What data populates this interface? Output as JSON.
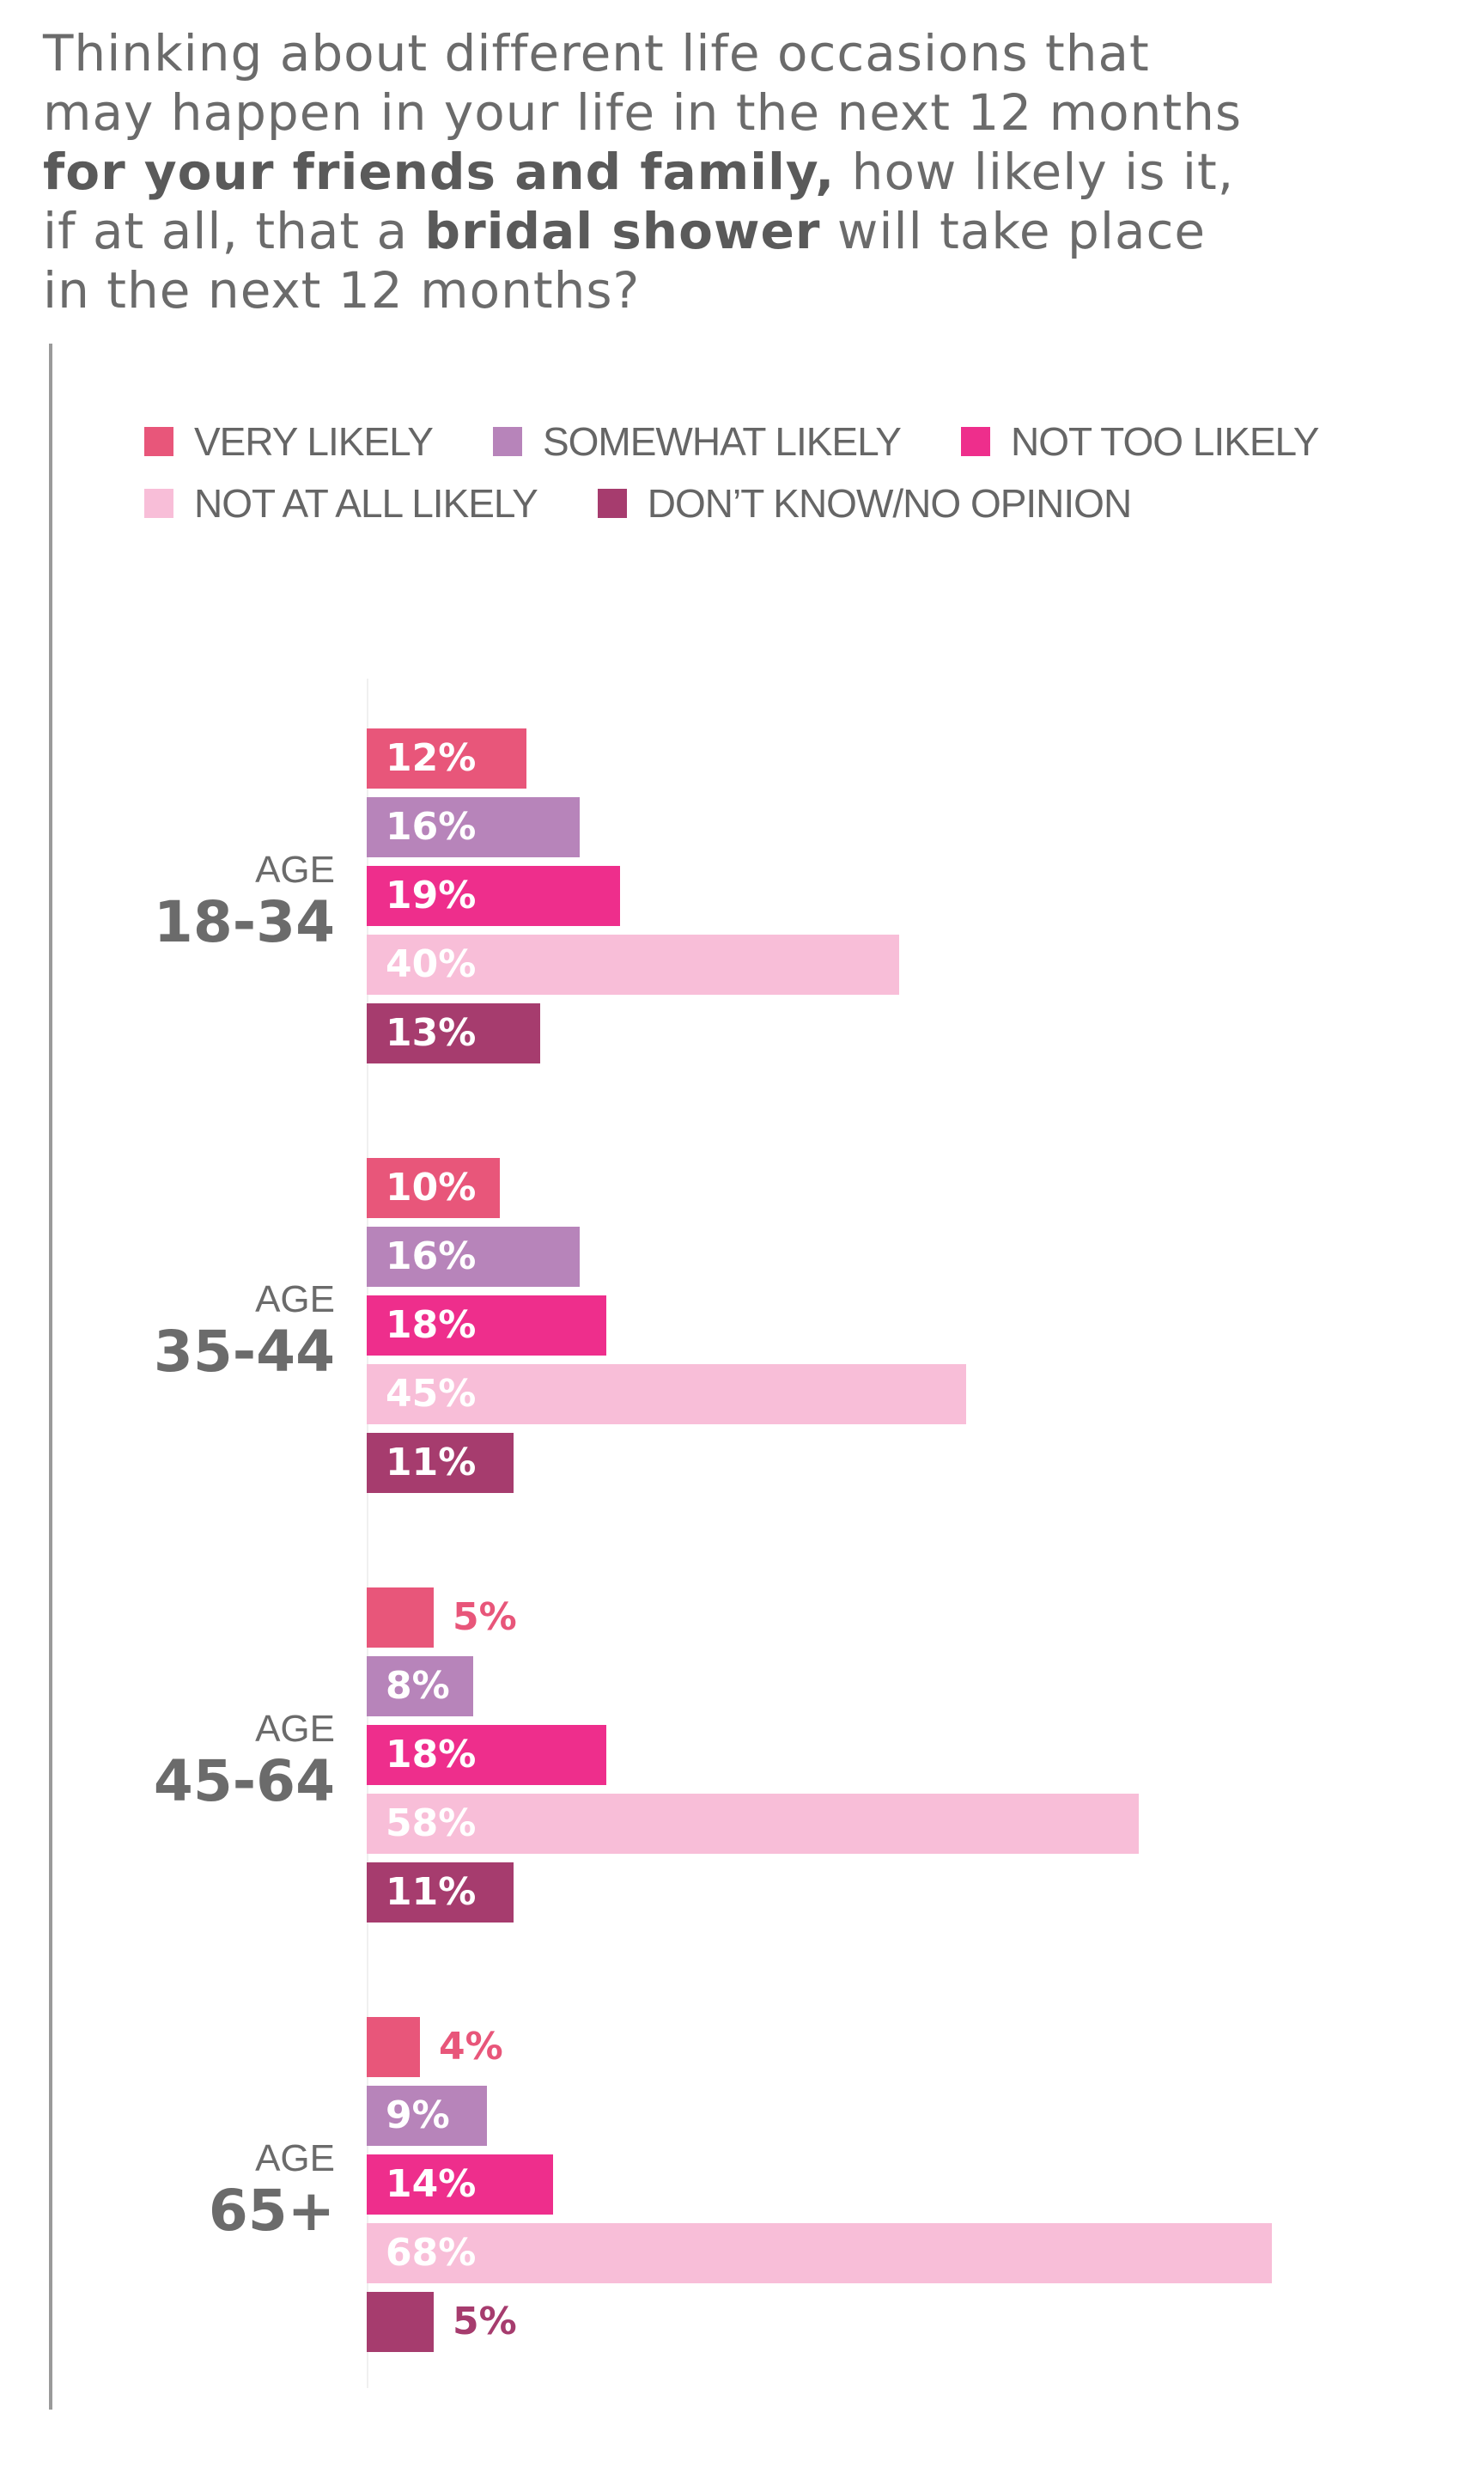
{
  "question": {
    "line1": "Thinking about different life occasions that",
    "line2": "may happen in your life in the next 12 months",
    "line3_bold": "for your friends and family,",
    "line3_rest": " how likely is it,",
    "line4_pre": "if at all, that a ",
    "line4_bold": "bridal shower",
    "line4_rest": " will take place",
    "line5": "in the next 12 months?"
  },
  "chart_data": {
    "type": "bar",
    "orientation": "horizontal",
    "title": "",
    "legend_position": "top",
    "series": [
      {
        "name": "VERY LIKELY",
        "color": "#e8567a",
        "values": [
          12,
          10,
          5,
          4
        ]
      },
      {
        "name": "SOMEWHAT LIKELY",
        "color": "#b784ba",
        "values": [
          16,
          16,
          8,
          9
        ]
      },
      {
        "name": "NOT TOO LIKELY",
        "color": "#ee2e8c",
        "values": [
          19,
          18,
          18,
          14
        ]
      },
      {
        "name": "NOT AT ALL LIKELY",
        "color": "#f8bed8",
        "values": [
          40,
          45,
          58,
          68
        ]
      },
      {
        "name": "DON’T KNOW/NO OPINION",
        "color": "#a63c6e",
        "values": [
          13,
          11,
          11,
          5
        ]
      }
    ],
    "groups": [
      {
        "prefix": "AGE",
        "label": "18-34"
      },
      {
        "prefix": "AGE",
        "label": "35-44"
      },
      {
        "prefix": "AGE",
        "label": "45-64"
      },
      {
        "prefix": "AGE",
        "label": "65+"
      }
    ],
    "value_suffix": "%",
    "xlim": [
      0,
      100
    ]
  }
}
